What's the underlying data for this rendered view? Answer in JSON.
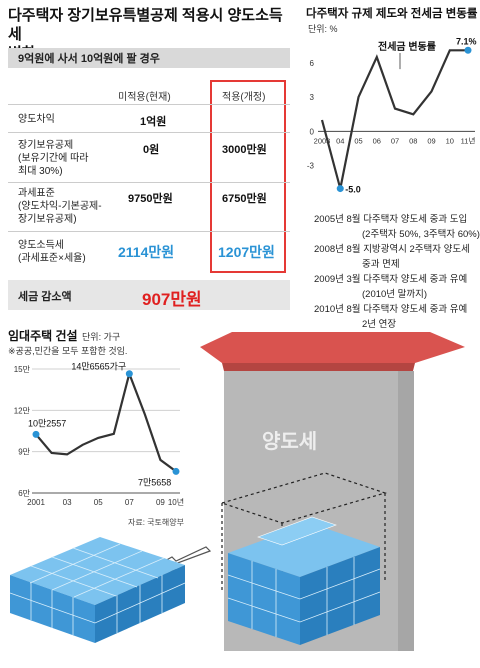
{
  "table_section": {
    "title_line1": "다주택자 장기보유특별공제 적용시 양도소득세",
    "title_line2": "변화",
    "scenario": "9억원에 사서 10억원에 팔 경우",
    "col_current": "미적용(현재)",
    "col_revised": "적용(개정)",
    "rows": [
      {
        "label": [
          "양도차익"
        ],
        "current": "1억원",
        "revised": ""
      },
      {
        "label": [
          "장기보유공제",
          "(보유기간에 따라",
          "최대 30%)"
        ],
        "current": "0원",
        "revised": "3000만원"
      },
      {
        "label": [
          "과세표준",
          "(양도차익-기본공제-",
          "장기보유공제)"
        ],
        "current": "9750만원",
        "revised": "6750만원"
      },
      {
        "label": [
          "양도소득세",
          "(과세표준×세율)"
        ],
        "current": "2114만원",
        "revised": "1207만원"
      }
    ],
    "reduction_label": "세금 감소액",
    "reduction_value": "907만원"
  },
  "rate_section": {
    "title": "다주택자 규제 제도와 전세금 변동률",
    "unit": "단위: %",
    "events": [
      {
        "date": "2005년 8월",
        "text": "다주택자 양도세 중과 도입",
        "detail": "(2주택자 50%, 3주택자 60%)"
      },
      {
        "date": "2008년 8월",
        "text": "지방광역시 2주택자 양도세",
        "detail": "중과 면제"
      },
      {
        "date": "2009년 3월",
        "text": "다주택자 양도세 중과 유예",
        "detail": "(2010년 말까지)"
      },
      {
        "date": "2010년 8월",
        "text": "다주택자 양도세 중과 유예",
        "detail": "2년 연장"
      }
    ]
  },
  "rental_section": {
    "title": "임대주택 건설",
    "unit": "단위: 가구",
    "note": "※공공,민간을 모두 포함한 것임.",
    "source": "자료: 국토해양부"
  },
  "illustration": {
    "building_label": "양도세",
    "building_color": "#b8b8b8",
    "roof_color": "#d9534f",
    "cube_color": "#4aa3df"
  },
  "chart_data": [
    {
      "type": "line",
      "title": "다주택자 규제 제도와 전세금 변동률",
      "ylabel": "단위: %",
      "series_name": "전세금 변동률",
      "x": [
        "2003",
        "04",
        "05",
        "06",
        "07",
        "08",
        "09",
        "10",
        "11년"
      ],
      "values": [
        1.0,
        -5.0,
        3.0,
        6.5,
        2.0,
        1.5,
        3.5,
        7.1,
        7.1
      ],
      "data_labels": {
        "low": "-5.0",
        "last": "7.1%"
      },
      "yticks": [
        -3,
        0,
        3,
        6
      ],
      "ylim": [
        -6,
        8
      ],
      "grid": false
    },
    {
      "type": "line",
      "title": "임대주택 건설",
      "ylabel": "단위: 가구",
      "x": [
        "2001",
        "02",
        "03",
        "04",
        "05",
        "06",
        "07",
        "08",
        "09",
        "10년"
      ],
      "xtick_labels": [
        "2001",
        "03",
        "05",
        "07",
        "09",
        "10년"
      ],
      "values": [
        102557,
        89000,
        88000,
        95000,
        100000,
        103000,
        146565,
        117000,
        84000,
        75658
      ],
      "data_labels": {
        "first": "10만2557",
        "peak": "14만6565가구",
        "last": "7만5658"
      },
      "yticks": [
        60000,
        90000,
        120000,
        150000
      ],
      "ytick_labels": [
        "6만",
        "9만",
        "12만",
        "15만"
      ],
      "ylim": [
        60000,
        150000
      ],
      "grid": true
    }
  ]
}
